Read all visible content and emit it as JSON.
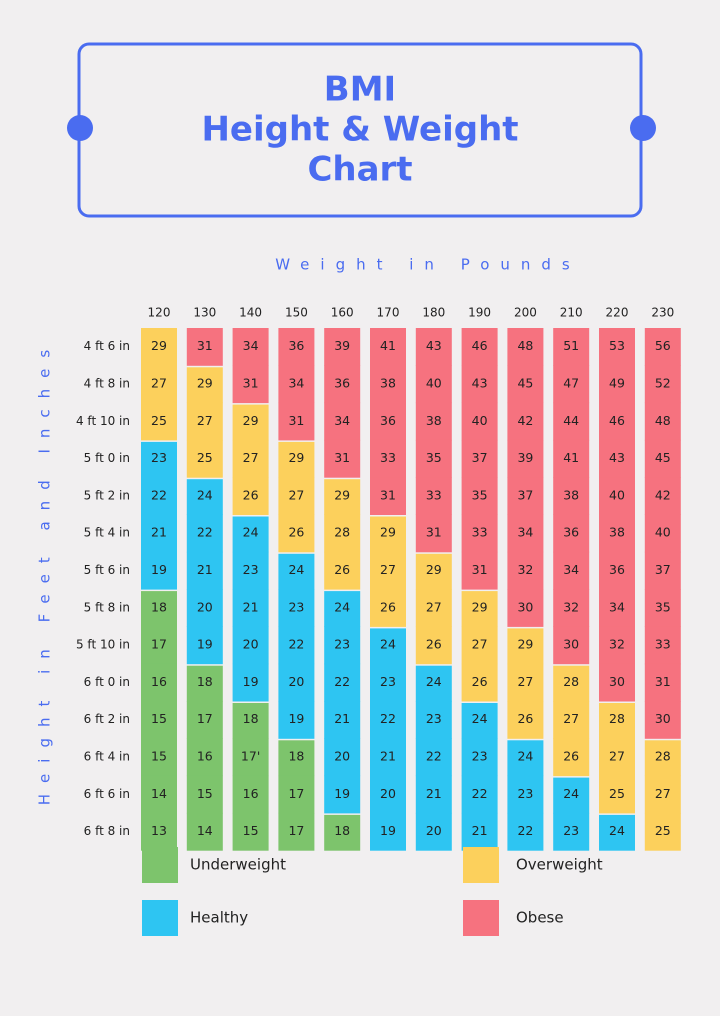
{
  "header": {
    "title": [
      "BMI",
      "Height & Weight",
      "Chart"
    ]
  },
  "x_axis_label": "Weight in Pounds",
  "y_axis_label": "Height in Feet and Inches",
  "columns": [
    "120",
    "130",
    "140",
    "150",
    "160",
    "170",
    "180",
    "190",
    "200",
    "210",
    "220",
    "230"
  ],
  "rows": [
    {
      "label": "4 ft 6 in",
      "values": [
        "29",
        "31",
        "34",
        "36",
        "39",
        "41",
        "43",
        "46",
        "48",
        "51",
        "53",
        "56"
      ],
      "colors": [
        "#fcd05c",
        "#f6727f",
        "#f6727f",
        "#f6727f",
        "#f6727f",
        "#f6727f",
        "#f6727f",
        "#f6727f",
        "#f6727f",
        "#f6727f",
        "#f6727f",
        "#f6727f"
      ]
    },
    {
      "label": "4 ft 8 in",
      "values": [
        "27",
        "29",
        "31",
        "34",
        "36",
        "38",
        "40",
        "43",
        "45",
        "47",
        "49",
        "52"
      ],
      "colors": [
        "#fcd05c",
        "#fcd05c",
        "#f6727f",
        "#f6727f",
        "#f6727f",
        "#f6727f",
        "#f6727f",
        "#f6727f",
        "#f6727f",
        "#f6727f",
        "#f6727f",
        "#f6727f"
      ]
    },
    {
      "label": "4 ft 10 in",
      "values": [
        "25",
        "27",
        "29",
        "31",
        "34",
        "36",
        "38",
        "40",
        "42",
        "44",
        "46",
        "48"
      ],
      "colors": [
        "#fcd05c",
        "#fcd05c",
        "#fcd05c",
        "#f6727f",
        "#f6727f",
        "#f6727f",
        "#f6727f",
        "#f6727f",
        "#f6727f",
        "#f6727f",
        "#f6727f",
        "#f6727f"
      ]
    },
    {
      "label": "5 ft 0 in",
      "values": [
        "23",
        "25",
        "27",
        "29",
        "31",
        "33",
        "35",
        "37",
        "39",
        "41",
        "43",
        "45"
      ],
      "colors": [
        "#2ec5f2",
        "#fcd05c",
        "#fcd05c",
        "#fcd05c",
        "#f6727f",
        "#f6727f",
        "#f6727f",
        "#f6727f",
        "#f6727f",
        "#f6727f",
        "#f6727f",
        "#f6727f"
      ]
    },
    {
      "label": "5 ft 2 in",
      "values": [
        "22",
        "24",
        "26",
        "27",
        "29",
        "31",
        "33",
        "35",
        "37",
        "38",
        "40",
        "42"
      ],
      "colors": [
        "#2ec5f2",
        "#2ec5f2",
        "#fcd05c",
        "#fcd05c",
        "#fcd05c",
        "#f6727f",
        "#f6727f",
        "#f6727f",
        "#f6727f",
        "#f6727f",
        "#f6727f",
        "#f6727f"
      ]
    },
    {
      "label": "5 ft 4 in",
      "values": [
        "21",
        "22",
        "24",
        "26",
        "28",
        "29",
        "31",
        "33",
        "34",
        "36",
        "38",
        "40"
      ],
      "colors": [
        "#2ec5f2",
        "#2ec5f2",
        "#2ec5f2",
        "#fcd05c",
        "#fcd05c",
        "#fcd05c",
        "#f6727f",
        "#f6727f",
        "#f6727f",
        "#f6727f",
        "#f6727f",
        "#f6727f"
      ]
    },
    {
      "label": "5 ft 6 in",
      "values": [
        "19",
        "21",
        "23",
        "24",
        "26",
        "27",
        "29",
        "31",
        "32",
        "34",
        "36",
        "37"
      ],
      "colors": [
        "#2ec5f2",
        "#2ec5f2",
        "#2ec5f2",
        "#2ec5f2",
        "#fcd05c",
        "#fcd05c",
        "#fcd05c",
        "#f6727f",
        "#f6727f",
        "#f6727f",
        "#f6727f",
        "#f6727f"
      ]
    },
    {
      "label": "5 ft 8 in",
      "values": [
        "18",
        "20",
        "21",
        "23",
        "24",
        "26",
        "27",
        "29",
        "30",
        "32",
        "34",
        "35"
      ],
      "colors": [
        "#7dc46c",
        "#2ec5f2",
        "#2ec5f2",
        "#2ec5f2",
        "#2ec5f2",
        "#fcd05c",
        "#fcd05c",
        "#fcd05c",
        "#f6727f",
        "#f6727f",
        "#f6727f",
        "#f6727f"
      ]
    },
    {
      "label": "5 ft 10 in",
      "values": [
        "17",
        "19",
        "20",
        "22",
        "23",
        "24",
        "26",
        "27",
        "29",
        "30",
        "32",
        "33"
      ],
      "colors": [
        "#7dc46c",
        "#2ec5f2",
        "#2ec5f2",
        "#2ec5f2",
        "#2ec5f2",
        "#2ec5f2",
        "#fcd05c",
        "#fcd05c",
        "#fcd05c",
        "#f6727f",
        "#f6727f",
        "#f6727f"
      ]
    },
    {
      "label": "6 ft 0 in",
      "values": [
        "16",
        "18",
        "19",
        "20",
        "22",
        "23",
        "24",
        "26",
        "27",
        "28",
        "30",
        "31"
      ],
      "colors": [
        "#7dc46c",
        "#7dc46c",
        "#2ec5f2",
        "#2ec5f2",
        "#2ec5f2",
        "#2ec5f2",
        "#2ec5f2",
        "#fcd05c",
        "#fcd05c",
        "#fcd05c",
        "#f6727f",
        "#f6727f"
      ]
    },
    {
      "label": "6 ft 2 in",
      "values": [
        "15",
        "17",
        "18",
        "19",
        "21",
        "22",
        "23",
        "24",
        "26",
        "27",
        "28",
        "30"
      ],
      "colors": [
        "#7dc46c",
        "#7dc46c",
        "#7dc46c",
        "#2ec5f2",
        "#2ec5f2",
        "#2ec5f2",
        "#2ec5f2",
        "#2ec5f2",
        "#fcd05c",
        "#fcd05c",
        "#fcd05c",
        "#f6727f"
      ]
    },
    {
      "label": "6 ft 4 in",
      "values": [
        "15",
        "16",
        "17'",
        "18",
        "20",
        "21",
        "22",
        "23",
        "24",
        "26",
        "27",
        "28"
      ],
      "colors": [
        "#7dc46c",
        "#7dc46c",
        "#7dc46c",
        "#7dc46c",
        "#2ec5f2",
        "#2ec5f2",
        "#2ec5f2",
        "#2ec5f2",
        "#2ec5f2",
        "#fcd05c",
        "#fcd05c",
        "#fcd05c"
      ]
    },
    {
      "label": "6 ft 6 in",
      "values": [
        "14",
        "15",
        "16",
        "17",
        "19",
        "20",
        "21",
        "22",
        "23",
        "24",
        "25",
        "27"
      ],
      "colors": [
        "#7dc46c",
        "#7dc46c",
        "#7dc46c",
        "#7dc46c",
        "#2ec5f2",
        "#2ec5f2",
        "#2ec5f2",
        "#2ec5f2",
        "#2ec5f2",
        "#2ec5f2",
        "#fcd05c",
        "#fcd05c"
      ]
    },
    {
      "label": "6 ft 8 in",
      "values": [
        "13",
        "14",
        "15",
        "17",
        "18",
        "19",
        "20",
        "21",
        "22",
        "23",
        "24",
        "25"
      ],
      "colors": [
        "#7dc46c",
        "#7dc46c",
        "#7dc46c",
        "#7dc46c",
        "#7dc46c",
        "#2ec5f2",
        "#2ec5f2",
        "#2ec5f2",
        "#2ec5f2",
        "#2ec5f2",
        "#2ec5f2",
        "#fcd05c"
      ]
    }
  ],
  "legend": [
    {
      "name": "Underweight",
      "color": "#7dc46c"
    },
    {
      "name": "Healthy",
      "color": "#2ec5f2"
    },
    {
      "name": "Overweight",
      "color": "#fcd05c"
    },
    {
      "name": "Obese",
      "color": "#f6727f"
    }
  ]
}
